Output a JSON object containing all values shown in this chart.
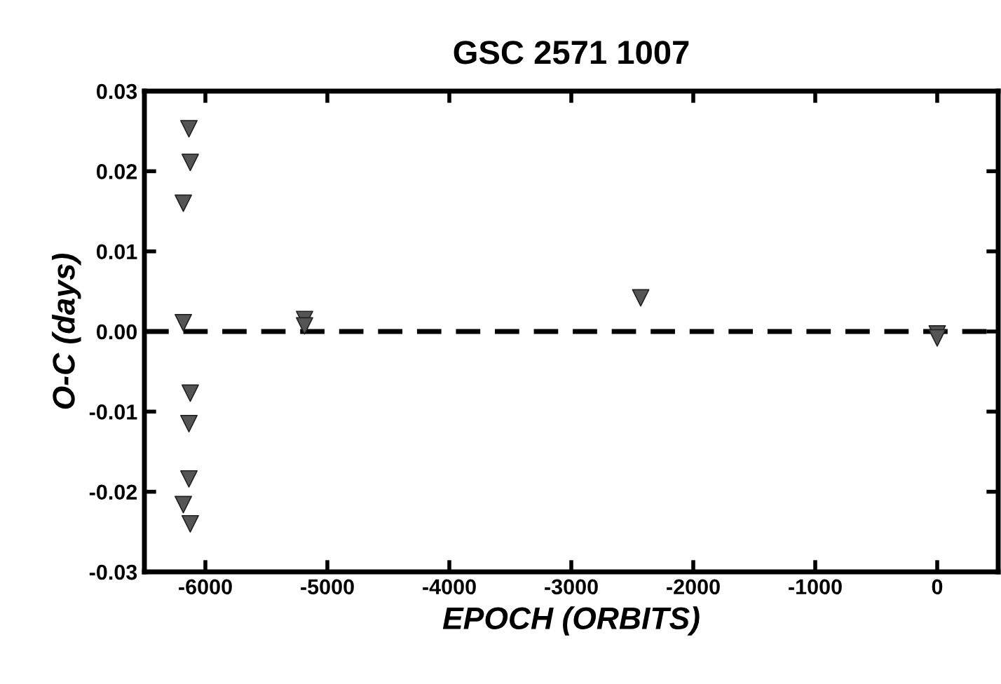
{
  "chart_data": {
    "type": "scatter",
    "title": "GSC 2571 1007",
    "xlabel": "EPOCH (ORBITS)",
    "ylabel": "O-C (days)",
    "marker": "triangle",
    "grid": false,
    "legend": false,
    "series": [
      {
        "color": "#555555",
        "x": [
          -6135,
          -6124,
          -6181,
          -6181,
          -6124,
          -6135,
          -6135,
          -6181,
          -6124,
          -5187,
          -5187,
          -2431,
          0,
          0
        ],
        "values": [
          0.0253,
          0.0211,
          0.016,
          0.0011,
          -0.0077,
          -0.0115,
          -0.0184,
          -0.0216,
          -0.024,
          0.0015,
          0.0007,
          0.0042,
          -0.0003,
          -0.0008
        ]
      }
    ],
    "ref_lines": [
      {
        "axis": "y",
        "value": 0,
        "line_style": "dashed",
        "color": "#000000"
      }
    ],
    "xlim": [
      -6500,
      500
    ],
    "xticks": [
      -6000,
      -5000,
      -4000,
      -3000,
      -2000,
      -1000,
      0
    ],
    "ylim": [
      -0.03,
      0.03
    ],
    "yticks": [
      {
        "value": -0.03,
        "label": "-0.03"
      },
      {
        "value": -0.02,
        "label": "-0.02"
      },
      {
        "value": -0.01,
        "label": "-0.01"
      },
      {
        "value": 0,
        "label": "0.00"
      },
      {
        "value": 0.01,
        "label": "0.01"
      },
      {
        "value": 0.02,
        "label": "0.02"
      },
      {
        "value": 0.03,
        "label": "0.03"
      }
    ]
  }
}
